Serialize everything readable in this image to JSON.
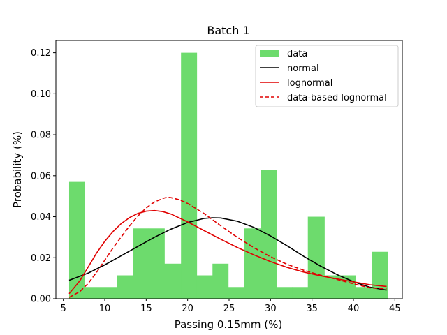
{
  "chart_data": {
    "type": "bar",
    "title": "Batch 1",
    "xlabel": "Passing 0.15mm (%)",
    "ylabel": "Probability (%)",
    "xlim": [
      4.1,
      45.9
    ],
    "ylim": [
      0,
      0.126
    ],
    "xticks": [
      5,
      10,
      15,
      20,
      25,
      30,
      35,
      40,
      45
    ],
    "yticks": [
      0.0,
      0.02,
      0.04,
      0.06,
      0.08,
      0.1,
      0.12
    ],
    "ytick_labels": [
      "0.00",
      "0.02",
      "0.04",
      "0.06",
      "0.08",
      "0.10",
      "0.12"
    ],
    "grid": false,
    "legend_position": "top-right",
    "histogram": {
      "name": "data",
      "color": "#6ddb6d",
      "bin_edges": [
        5.7,
        7.6,
        9.5,
        11.5,
        13.4,
        15.3,
        17.2,
        19.2,
        21.1,
        23.0,
        24.9,
        26.8,
        28.8,
        30.7,
        32.6,
        34.5,
        36.5,
        38.4,
        40.3,
        42.2,
        44.1
      ],
      "values": [
        0.057,
        0.0057,
        0.0057,
        0.0114,
        0.0343,
        0.0343,
        0.0171,
        0.12,
        0.0114,
        0.0171,
        0.0057,
        0.0343,
        0.0629,
        0.0057,
        0.0057,
        0.04,
        0.0114,
        0.0114,
        0.0057,
        0.0229
      ]
    },
    "series": [
      {
        "name": "normal",
        "color": "#000000",
        "style": "solid",
        "x": [
          5.7,
          8,
          10,
          12,
          14,
          16,
          18,
          20,
          22,
          23,
          24,
          26,
          28,
          30,
          32,
          34,
          36,
          38,
          40,
          42,
          44
        ],
        "y": [
          0.009,
          0.0125,
          0.0165,
          0.021,
          0.0255,
          0.03,
          0.034,
          0.0372,
          0.0392,
          0.0395,
          0.0394,
          0.0378,
          0.0348,
          0.0306,
          0.0258,
          0.0207,
          0.016,
          0.0118,
          0.0083,
          0.0056,
          0.0042
        ]
      },
      {
        "name": "lognormal",
        "color": "#e00000",
        "style": "solid",
        "x": [
          5.7,
          7,
          8,
          9,
          10,
          11,
          12,
          13,
          14,
          15,
          16,
          17,
          18,
          20,
          22,
          24,
          26,
          28,
          30,
          32,
          34,
          36,
          38,
          40,
          42,
          44
        ],
        "y": [
          0.0025,
          0.0088,
          0.0155,
          0.0222,
          0.028,
          0.0328,
          0.0367,
          0.0396,
          0.0416,
          0.0427,
          0.043,
          0.0425,
          0.0413,
          0.0375,
          0.0332,
          0.029,
          0.025,
          0.0214,
          0.0181,
          0.0153,
          0.013,
          0.0112,
          0.0097,
          0.0082,
          0.0068,
          0.006
        ]
      },
      {
        "name": "data-based lognormal",
        "color": "#e00000",
        "style": "dashed",
        "x": [
          5.7,
          7,
          8,
          9,
          10,
          11,
          12,
          13,
          14,
          15,
          16,
          17,
          17.5,
          18,
          19,
          20,
          22,
          24,
          26,
          28,
          30,
          32,
          34,
          36,
          38,
          40,
          42,
          44
        ],
        "y": [
          0.0006,
          0.0035,
          0.0075,
          0.0128,
          0.0188,
          0.0248,
          0.0302,
          0.0356,
          0.0404,
          0.0443,
          0.0472,
          0.0489,
          0.0495,
          0.0493,
          0.0483,
          0.0465,
          0.0415,
          0.0356,
          0.0299,
          0.0249,
          0.0205,
          0.0168,
          0.0139,
          0.0115,
          0.0094,
          0.0073,
          0.0053,
          0.0048
        ]
      }
    ]
  }
}
